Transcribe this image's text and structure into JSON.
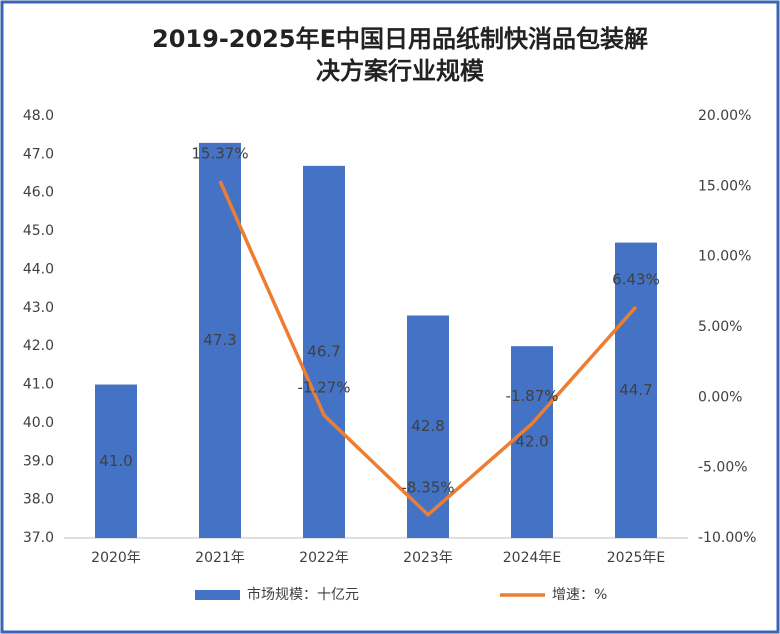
{
  "chart_data": {
    "type": "bar_line",
    "title": "2019-2025年E中国日用品纸制快消品包装解决方案行业规模",
    "categories": [
      "2020年",
      "2021年",
      "2022年",
      "2023年",
      "2024年E",
      "2025年E"
    ],
    "series": [
      {
        "name": "市场规模：十亿元",
        "color": "#4472c4",
        "type": "bar",
        "values": [
          41.0,
          47.3,
          46.7,
          42.8,
          42.0,
          44.7
        ],
        "value_labels": [
          "41.0",
          "47.3",
          "46.7",
          "42.8",
          "42.0",
          "44.7"
        ]
      },
      {
        "name": "增速：%",
        "color": "#ed7d31",
        "type": "line",
        "axis": "y2",
        "values": [
          null,
          15.37,
          -1.27,
          -8.35,
          -1.87,
          6.43
        ],
        "value_labels": [
          null,
          "15.37%",
          "-1.27%",
          "-8.35%",
          "-1.87%",
          "6.43%"
        ]
      }
    ],
    "ylim": [
      37,
      48
    ],
    "yticks": [
      {
        "value": 37,
        "label": "37.0"
      },
      {
        "value": 38,
        "label": "38.0"
      },
      {
        "value": 39,
        "label": "39.0"
      },
      {
        "value": 40,
        "label": "40.0"
      },
      {
        "value": 41,
        "label": "41.0"
      },
      {
        "value": 42,
        "label": "42.0"
      },
      {
        "value": 43,
        "label": "43.0"
      },
      {
        "value": 44,
        "label": "44.0"
      },
      {
        "value": 45,
        "label": "45.0"
      },
      {
        "value": 46,
        "label": "46.0"
      },
      {
        "value": 47,
        "label": "47.0"
      },
      {
        "value": 48,
        "label": "48.0"
      }
    ],
    "y2lim": [
      -10,
      20
    ],
    "y2ticks": [
      {
        "value": -10,
        "label": "-10.00%"
      },
      {
        "value": -5,
        "label": "-5.00%"
      },
      {
        "value": 0,
        "label": "0.00%"
      },
      {
        "value": 5,
        "label": "5.00%"
      },
      {
        "value": 10,
        "label": "10.00%"
      },
      {
        "value": 15,
        "label": "15.00%"
      },
      {
        "value": 20,
        "label": "20.00%"
      }
    ],
    "grid": false,
    "legend": "bottom"
  }
}
